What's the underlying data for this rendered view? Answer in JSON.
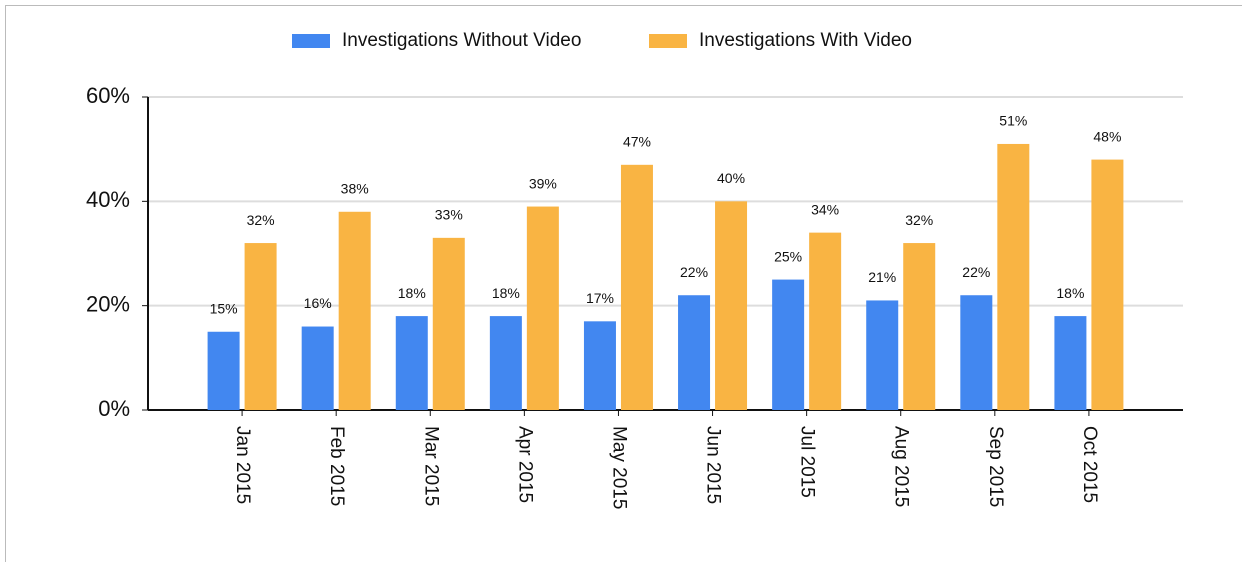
{
  "chart_data": {
    "type": "bar",
    "categories": [
      "Jan 2015",
      "Feb 2015",
      "Mar 2015",
      "Apr 2015",
      "May 2015",
      "Jun 2015",
      "Jul 2015",
      "Aug 2015",
      "Sep 2015",
      "Oct 2015"
    ],
    "series": [
      {
        "name": "Investigations Without Video",
        "color": "#4287f0",
        "values": [
          15,
          16,
          18,
          18,
          17,
          22,
          25,
          21,
          22,
          18
        ],
        "value_labels": [
          "15%",
          "16%",
          "18%",
          "18%",
          "17%",
          "22%",
          "25%",
          "21%",
          "22%",
          "18%"
        ]
      },
      {
        "name": "Investigations With Video",
        "color": "#f9b443",
        "values": [
          32,
          38,
          33,
          39,
          47,
          40,
          34,
          32,
          51,
          48
        ],
        "value_labels": [
          "32%",
          "38%",
          "33%",
          "39%",
          "47%",
          "40%",
          "34%",
          "32%",
          "51%",
          "48%"
        ]
      }
    ],
    "ylim": [
      0,
      60
    ],
    "yticks": [
      {
        "value": 0,
        "label": "0%"
      },
      {
        "value": 20,
        "label": "20%"
      },
      {
        "value": 40,
        "label": "40%"
      },
      {
        "value": 60,
        "label": "60%"
      }
    ],
    "grid": true,
    "legend": "top"
  }
}
